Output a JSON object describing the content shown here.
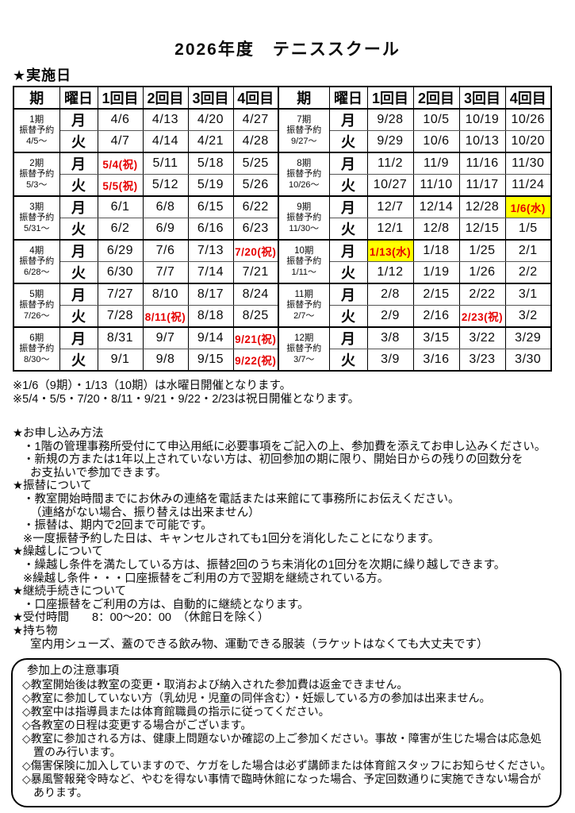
{
  "title": "2026年度　テニススクール",
  "schedule_heading": "★実施日",
  "colors": {
    "holiday_red": "#e60000",
    "wednesday_highlight": "#ffff00",
    "border": "#000000"
  },
  "table": {
    "headers": [
      "期",
      "曜日",
      "1回目",
      "2回目",
      "3回目",
      "4回目"
    ],
    "header_keys": [
      "period",
      "day",
      "session-1",
      "session-2",
      "session-3",
      "session-4"
    ],
    "day_labels": [
      "月",
      "火"
    ],
    "left_periods": [
      {
        "name": "1期",
        "sub": "振替予約",
        "from": "4/5～",
        "mon": [
          {
            "text": "4/6"
          },
          {
            "text": "4/13"
          },
          {
            "text": "4/20"
          },
          {
            "text": "4/27"
          }
        ],
        "tue": [
          {
            "text": "4/7"
          },
          {
            "text": "4/14"
          },
          {
            "text": "4/21"
          },
          {
            "text": "4/28"
          }
        ]
      },
      {
        "name": "2期",
        "sub": "振替予約",
        "from": "5/3～",
        "mon": [
          {
            "text": "5/4(祝)",
            "style": "red"
          },
          {
            "text": "5/11"
          },
          {
            "text": "5/18"
          },
          {
            "text": "5/25"
          }
        ],
        "tue": [
          {
            "text": "5/5(祝)",
            "style": "red"
          },
          {
            "text": "5/12"
          },
          {
            "text": "5/19"
          },
          {
            "text": "5/26"
          }
        ]
      },
      {
        "name": "3期",
        "sub": "振替予約",
        "from": "5/31～",
        "mon": [
          {
            "text": "6/1"
          },
          {
            "text": "6/8"
          },
          {
            "text": "6/15"
          },
          {
            "text": "6/22"
          }
        ],
        "tue": [
          {
            "text": "6/2"
          },
          {
            "text": "6/9"
          },
          {
            "text": "6/16"
          },
          {
            "text": "6/23"
          }
        ]
      },
      {
        "name": "4期",
        "sub": "振替予約",
        "from": "6/28～",
        "mon": [
          {
            "text": "6/29"
          },
          {
            "text": "7/6"
          },
          {
            "text": "7/13"
          },
          {
            "text": "7/20(祝)",
            "style": "red"
          }
        ],
        "tue": [
          {
            "text": "6/30"
          },
          {
            "text": "7/7"
          },
          {
            "text": "7/14"
          },
          {
            "text": "7/21"
          }
        ]
      },
      {
        "name": "5期",
        "sub": "振替予約",
        "from": "7/26～",
        "mon": [
          {
            "text": "7/27"
          },
          {
            "text": "8/10"
          },
          {
            "text": "8/17"
          },
          {
            "text": "8/24"
          }
        ],
        "tue": [
          {
            "text": "7/28"
          },
          {
            "text": "8/11(祝)",
            "style": "red"
          },
          {
            "text": "8/18"
          },
          {
            "text": "8/25"
          }
        ]
      },
      {
        "name": "6期",
        "sub": "振替予約",
        "from": "8/30～",
        "mon": [
          {
            "text": "8/31"
          },
          {
            "text": "9/7"
          },
          {
            "text": "9/14"
          },
          {
            "text": "9/21(祝)",
            "style": "red"
          }
        ],
        "tue": [
          {
            "text": "9/1"
          },
          {
            "text": "9/8"
          },
          {
            "text": "9/15"
          },
          {
            "text": "9/22(祝)",
            "style": "red"
          }
        ]
      }
    ],
    "right_periods": [
      {
        "name": "7期",
        "sub": "振替予約",
        "from": "9/27～",
        "mon": [
          {
            "text": "9/28"
          },
          {
            "text": "10/5"
          },
          {
            "text": "10/19"
          },
          {
            "text": "10/26"
          }
        ],
        "tue": [
          {
            "text": "9/29"
          },
          {
            "text": "10/6"
          },
          {
            "text": "10/13"
          },
          {
            "text": "10/20"
          }
        ]
      },
      {
        "name": "8期",
        "sub": "振替予約",
        "from": "10/26～",
        "mon": [
          {
            "text": "11/2"
          },
          {
            "text": "11/9"
          },
          {
            "text": "11/16"
          },
          {
            "text": "11/30"
          }
        ],
        "tue": [
          {
            "text": "10/27"
          },
          {
            "text": "11/10"
          },
          {
            "text": "11/17"
          },
          {
            "text": "11/24"
          }
        ]
      },
      {
        "name": "9期",
        "sub": "振替予約",
        "from": "11/30～",
        "mon": [
          {
            "text": "12/7"
          },
          {
            "text": "12/14"
          },
          {
            "text": "12/28"
          },
          {
            "text": "1/6(水)",
            "style": "yellow"
          }
        ],
        "tue": [
          {
            "text": "12/1"
          },
          {
            "text": "12/8"
          },
          {
            "text": "12/15"
          },
          {
            "text": "1/5"
          }
        ]
      },
      {
        "name": "10期",
        "sub": "振替予約",
        "from": "1/11～",
        "mon": [
          {
            "text": "1/13(水)",
            "style": "yellow"
          },
          {
            "text": "1/18"
          },
          {
            "text": "1/25"
          },
          {
            "text": "2/1"
          }
        ],
        "tue": [
          {
            "text": "1/12"
          },
          {
            "text": "1/19"
          },
          {
            "text": "1/26"
          },
          {
            "text": "2/2"
          }
        ]
      },
      {
        "name": "11期",
        "sub": "振替予約",
        "from": "2/7～",
        "mon": [
          {
            "text": "2/8"
          },
          {
            "text": "2/15"
          },
          {
            "text": "2/22"
          },
          {
            "text": "3/1"
          }
        ],
        "tue": [
          {
            "text": "2/9"
          },
          {
            "text": "2/16"
          },
          {
            "text": "2/23(祝)",
            "style": "red"
          },
          {
            "text": "3/2"
          }
        ]
      },
      {
        "name": "12期",
        "sub": "振替予約",
        "from": "3/7～",
        "mon": [
          {
            "text": "3/8"
          },
          {
            "text": "3/15"
          },
          {
            "text": "3/22"
          },
          {
            "text": "3/29"
          }
        ],
        "tue": [
          {
            "text": "3/9"
          },
          {
            "text": "3/16"
          },
          {
            "text": "3/23"
          },
          {
            "text": "3/30"
          }
        ]
      }
    ]
  },
  "footnotes": [
    "※1/6（9期）・1/13（10期）は水曜日開催となります。",
    "※5/4・5/5・7/20・8/11・9/21・9/22・2/23は祝日開催となります。"
  ],
  "info_lines": [
    {
      "text": "★お申し込み方法",
      "indent": 0
    },
    {
      "text": "・1階の管理事務所受付にて申込用紙に必要事項をご記入の上、参加費を添えてお申し込みください。",
      "indent": 1
    },
    {
      "text": "・新規の方または1年以上されていない方は、初回参加の期に限り、開始日からの残りの回数分を",
      "indent": 1
    },
    {
      "text": "お支払いで参加できます。",
      "indent": 2
    },
    {
      "text": "★振替について",
      "indent": 0
    },
    {
      "text": "・教室開始時間までにお休みの連絡を電話または来館にて事務所にお伝えください。",
      "indent": 1
    },
    {
      "text": "（連絡がない場合、振り替えは出来ません）",
      "indent": 2
    },
    {
      "text": "・振替は、期内で2回まで可能です。",
      "indent": 1
    },
    {
      "text": "※一度振替予約した日は、キャンセルされても1回分を消化したことになります。",
      "indent": 1
    },
    {
      "text": "★繰越しについて",
      "indent": 0
    },
    {
      "text": "・繰越し条件を満たしている方は、振替2回のうち未消化の1回分を次期に繰り越しできます。",
      "indent": 1
    },
    {
      "text": "※繰越し条件・・・口座振替をご利用の方で翌期を継続されている方。",
      "indent": 1
    },
    {
      "text": "★継続手続きについて",
      "indent": 0
    },
    {
      "text": "・口座振替をご利用の方は、自動的に継続となります。",
      "indent": 1
    },
    {
      "text": "★受付時間　　8：00～20：00　（休館日を除く）",
      "indent": 0
    },
    {
      "text": "★持ち物",
      "indent": 0
    },
    {
      "text": "室内用シューズ、蓋のできる飲み物、運動できる服装（ラケットはなくても大丈夫です）",
      "indent": 2
    }
  ],
  "notice_box": {
    "title": "参加上の注意事項",
    "items": [
      "◇教室開始後は教室の変更・取消および納入された参加費は返金できません。",
      "◇教室に参加していない方（乳幼児・児童の同伴含む）・妊娠している方の参加は出来ません。",
      "◇教室中は指導員または体育館職員の指示に従ってください。",
      "◇各教室の日程は変更する場合がございます。",
      "◇教室に参加される方は、健康上問題ないか確認の上ご参加ください。事故・障害が生じた場合は応急処置のみ行います。",
      "◇傷害保険に加入していますので、ケガをした場合は必ず講師または体育館スタッフにお知らせください。",
      "◇暴風警報発令時など、やむを得ない事情で臨時休館になった場合、予定回数通りに実施できない場合があります。"
    ]
  }
}
